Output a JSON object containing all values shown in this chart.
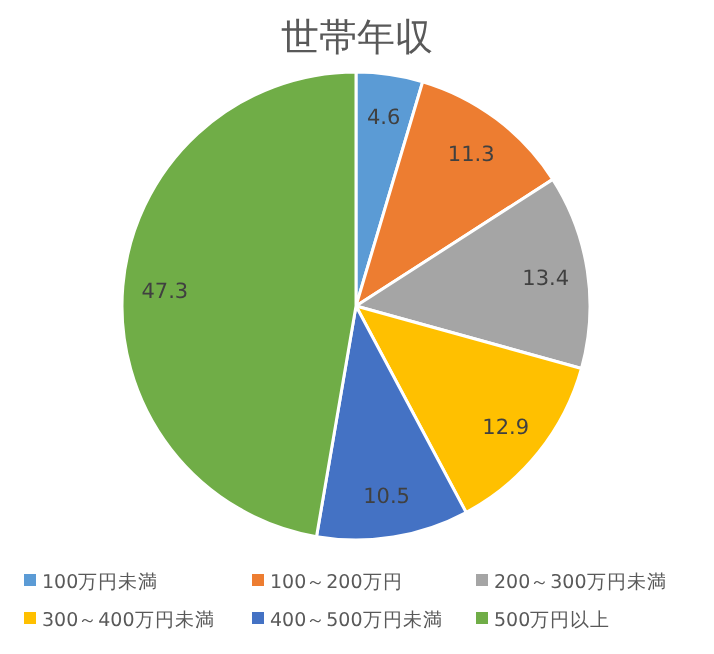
{
  "chart_data": {
    "type": "pie",
    "title": "世帯年収",
    "categories": [
      "100万円未満",
      "100～200万円",
      "200～300万円未満",
      "300～400万円未満",
      "400～500万円未満",
      "500万円以上"
    ],
    "values": [
      4.6,
      11.3,
      13.4,
      12.9,
      10.5,
      47.3
    ],
    "colors": [
      "#5b9bd5",
      "#ed7d31",
      "#a5a5a5",
      "#ffc000",
      "#4472c4",
      "#70ad47"
    ],
    "data_labels": true,
    "legend": "bottom"
  }
}
